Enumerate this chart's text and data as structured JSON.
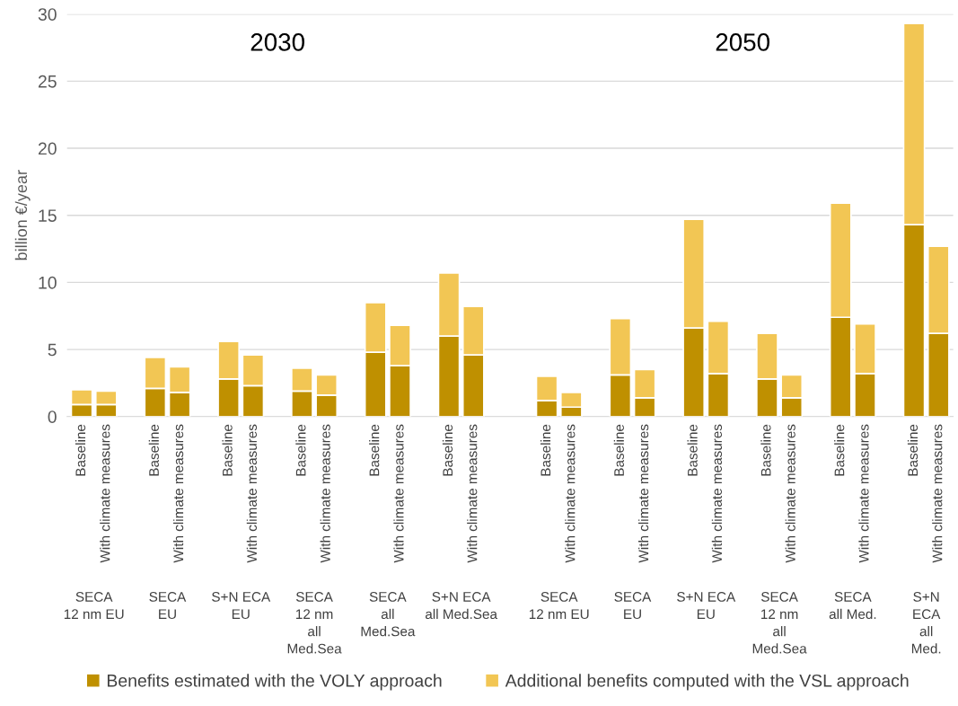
{
  "chart_data": {
    "type": "bar",
    "stacked": true,
    "ylabel": "billion €/year",
    "categories": [
      "Baseline",
      "With climate measures",
      null,
      "Baseline",
      "With climate measures",
      null,
      "Baseline",
      "With climate measures",
      null,
      "Baseline",
      "With climate measures",
      null,
      "Baseline",
      "With climate measures",
      null,
      "Baseline",
      "With climate measures",
      null,
      null,
      "Baseline",
      "With climate measures",
      null,
      "Baseline",
      "With climate measures",
      null,
      "Baseline",
      "With climate measures",
      null,
      "Baseline",
      "With climate measures",
      null,
      "Baseline",
      "With climate measures",
      null,
      "Baseline",
      "With climate measures"
    ],
    "series": [
      {
        "name": "Benefits estimated with the VOLY approach",
        "color": "#bf9000",
        "values": [
          0.9,
          0.9,
          null,
          2.1,
          1.8,
          null,
          2.8,
          2.3,
          null,
          1.9,
          1.6,
          null,
          4.8,
          3.8,
          null,
          6.0,
          4.6,
          null,
          null,
          1.2,
          0.7,
          null,
          3.1,
          1.4,
          null,
          6.6,
          3.2,
          null,
          2.8,
          1.4,
          null,
          7.4,
          3.2,
          null,
          14.3,
          6.2
        ]
      },
      {
        "name": "Additional benefits computed with the VSL approach",
        "color": "#f2c654",
        "values": [
          1.1,
          1.0,
          null,
          2.3,
          1.9,
          null,
          2.8,
          2.3,
          null,
          1.7,
          1.5,
          null,
          3.7,
          3.0,
          null,
          4.7,
          3.6,
          null,
          null,
          1.8,
          1.1,
          null,
          4.2,
          2.1,
          null,
          8.1,
          3.9,
          null,
          3.4,
          1.7,
          null,
          8.5,
          3.7,
          null,
          15.0,
          6.5
        ]
      }
    ],
    "annotations": [
      "2030",
      "2050",
      "SECA\n12 nm EU",
      "SECA\nEU",
      "S+N ECA\nEU",
      "SECA\n12 nm\nall\nMed.Sea",
      "SECA\nall\nMed.Sea",
      "S+N ECA\nall Med.Sea",
      "SECA\n12 nm EU",
      "SECA\nEU",
      "S+N ECA\nEU",
      "SECA\n12 nm\nall\nMed.Sea",
      "SECA\nall Med.",
      "S+N\nECA\nall\nMed."
    ],
    "ylim": [
      0,
      30
    ],
    "yticks": [
      0,
      5,
      10,
      15,
      20,
      25,
      30
    ],
    "grid": "y",
    "legend": "bottom"
  }
}
